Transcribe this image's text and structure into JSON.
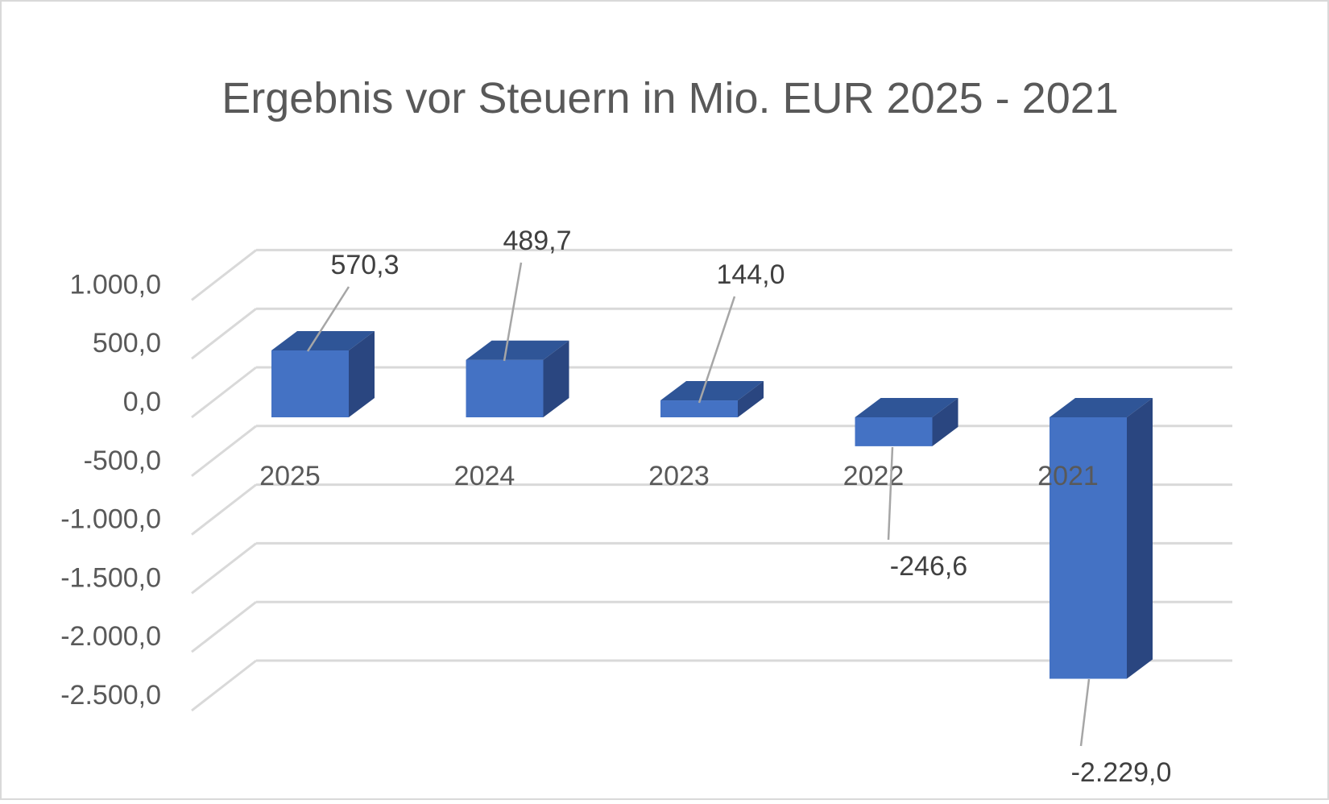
{
  "chart_data": {
    "type": "bar",
    "title": "Ergebnis vor Steuern in Mio. EUR 2025 - 2021",
    "categories": [
      "2025",
      "2024",
      "2023",
      "2022",
      "2021"
    ],
    "series": [
      {
        "values": [
          570.3,
          489.7,
          144.0,
          -246.6,
          -2229.0
        ]
      }
    ],
    "data_labels": [
      "570,3",
      "489,7",
      "144,0",
      "-246,6",
      "-2.229,0"
    ],
    "y_tick_labels": [
      "1.000,0",
      "500,0",
      "0,0",
      "-500,0",
      "-1.000,0",
      "-1.500,0",
      "-2.000,0",
      "-2.500,0"
    ],
    "y_ticks": [
      1000,
      500,
      0,
      -500,
      -1000,
      -1500,
      -2000,
      -2500
    ],
    "ylim": [
      -2500,
      1000
    ],
    "grid": true,
    "legend": "none",
    "three_d": true,
    "colors": {
      "bar_front": "#4472C4",
      "bar_top": "#2F5597",
      "bar_side": "#2A4680",
      "grid": "#D9D9D9",
      "text": "#595959",
      "label": "#404040",
      "leader": "#A6A6A6",
      "border": "#D9D9D9"
    }
  }
}
